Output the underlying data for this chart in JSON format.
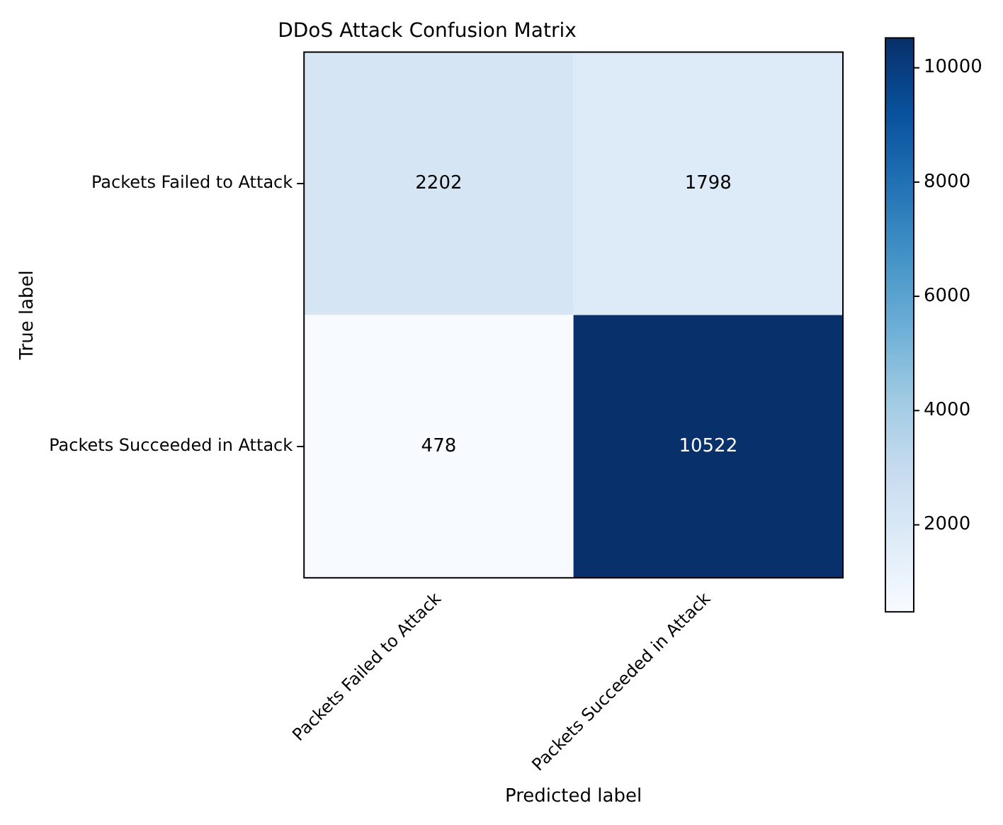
{
  "chart_data": {
    "type": "heatmap",
    "title": "DDoS Attack Confusion Matrix",
    "xlabel": "Predicted label",
    "ylabel": "True label",
    "categories": [
      "Packets Failed to Attack",
      "Packets Succeeded in Attack"
    ],
    "y_categories": [
      "Packets Failed to Attack",
      "Packets Succeeded in Attack"
    ],
    "cells": [
      [
        2202,
        1798
      ],
      [
        478,
        10522
      ]
    ],
    "clim": [
      478,
      10522
    ],
    "cticks": [
      2000,
      4000,
      6000,
      8000,
      10000
    ],
    "data_labels": true,
    "grid": false,
    "legend": false
  }
}
